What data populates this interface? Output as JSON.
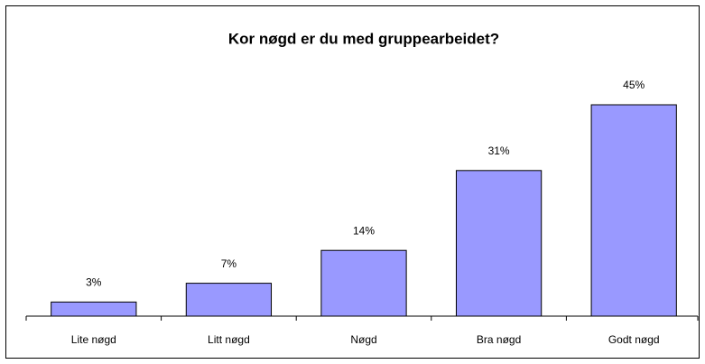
{
  "chart_data": {
    "type": "bar",
    "title": "Kor nøgd er du med gruppearbeidet?",
    "categories": [
      "Lite nøgd",
      "Litt nøgd",
      "Nøgd",
      "Bra nøgd",
      "Godt nøgd"
    ],
    "values": [
      3,
      7,
      14,
      31,
      45
    ],
    "value_labels": [
      "3%",
      "7%",
      "14%",
      "31%",
      "45%"
    ],
    "color": "#9999ff",
    "ylim": [
      0,
      50
    ]
  }
}
